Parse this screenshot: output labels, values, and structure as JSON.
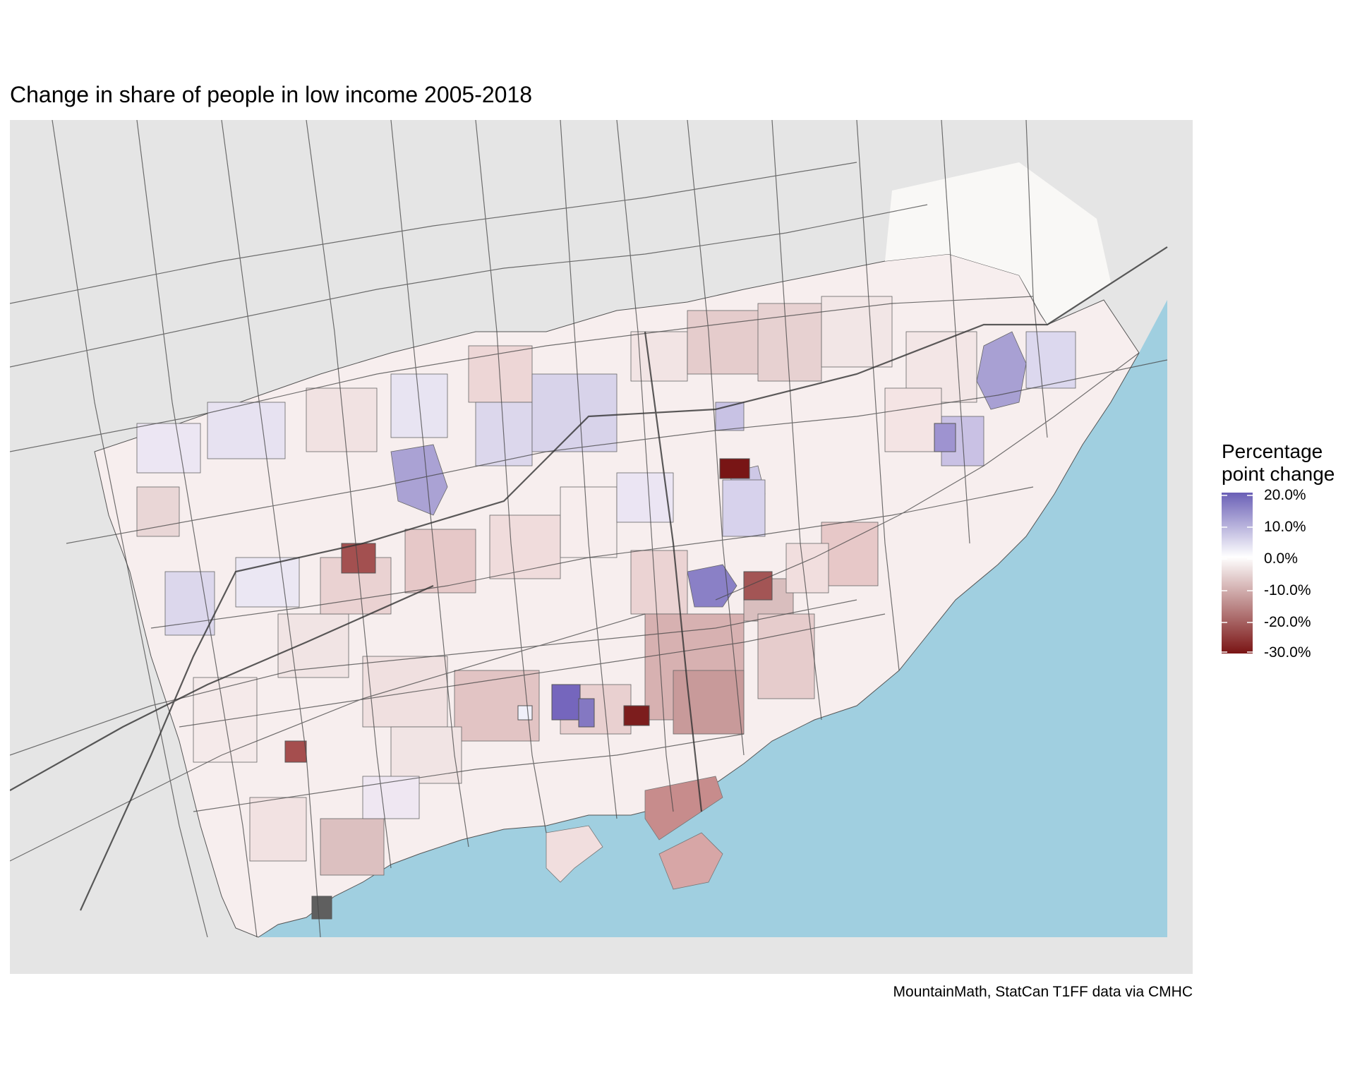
{
  "title": "Change in share of people in low income 2005-2018",
  "caption": "MountainMath, StatCan T1FF data via CMHC",
  "legend": {
    "title_line1": "Percentage",
    "title_line2": "point change",
    "ticks": [
      {
        "value": 20,
        "label": "20.0%"
      },
      {
        "value": 10,
        "label": "10.0%"
      },
      {
        "value": 0,
        "label": "0.0%"
      },
      {
        "value": -10,
        "label": "-10.0%"
      },
      {
        "value": -20,
        "label": "-20.0%"
      },
      {
        "value": -30,
        "label": "-30.0%"
      }
    ],
    "range": [
      -30,
      20
    ]
  },
  "colors": {
    "panel_background": "#e5e5e5",
    "water": "#a0cfe0",
    "positive_high": "#6a5fb6",
    "neutral": "#ffffff",
    "negative_high": "#7a1414",
    "no_data": "#5f5f5f"
  }
}
